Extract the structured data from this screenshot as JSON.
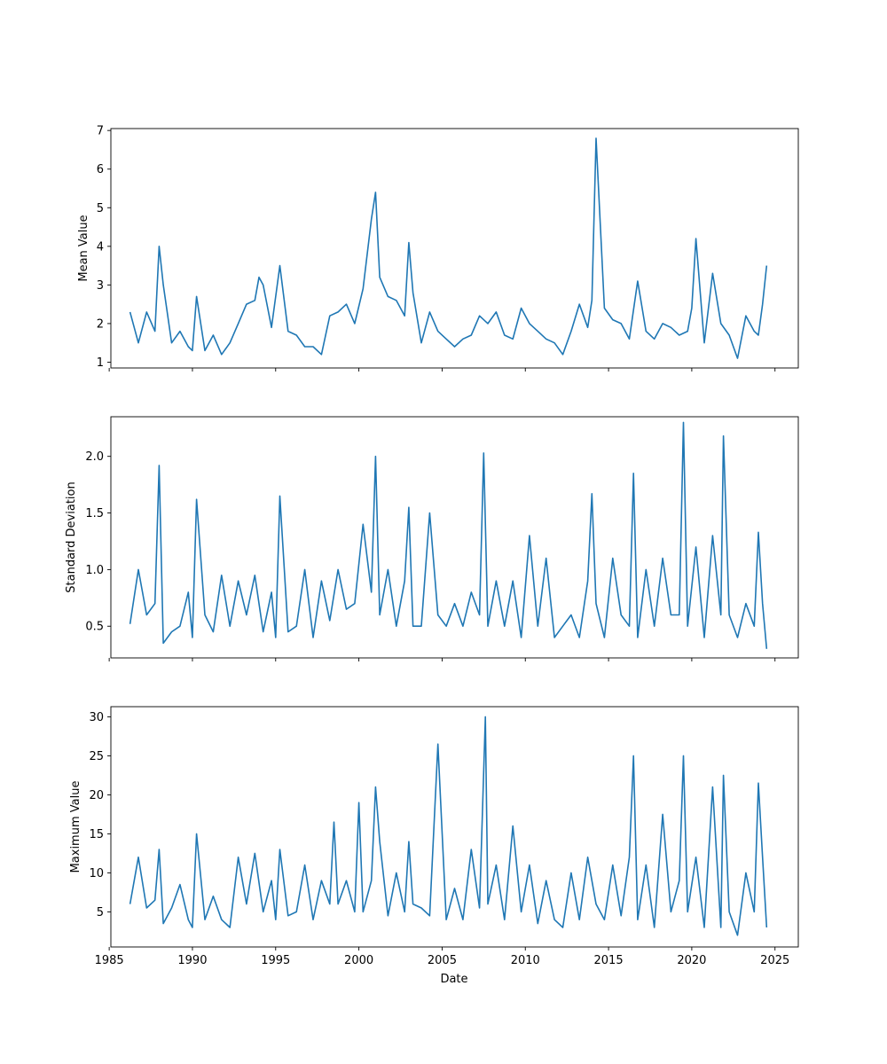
{
  "figure": {
    "xlabel": "Date",
    "xlim": [
      1985.1,
      2026.4
    ],
    "xticks": [
      1985,
      1990,
      1995,
      2000,
      2005,
      2010,
      2015,
      2020,
      2025
    ],
    "line_color": "#1f77b4"
  },
  "chart_data": [
    {
      "type": "line",
      "ylabel": "Mean Value",
      "ylim": [
        0.85,
        7.05
      ],
      "yticks": [
        1,
        2,
        3,
        4,
        5,
        6,
        7
      ],
      "x": [
        1986.25,
        1986.75,
        1987.25,
        1987.75,
        1988.0,
        1988.25,
        1988.75,
        1989.25,
        1989.75,
        1990.0,
        1990.25,
        1990.75,
        1991.25,
        1991.75,
        1992.25,
        1992.75,
        1993.25,
        1993.75,
        1994.0,
        1994.25,
        1994.75,
        1995.25,
        1995.75,
        1996.25,
        1996.75,
        1997.25,
        1997.75,
        1998.25,
        1998.75,
        1999.25,
        1999.75,
        2000.25,
        2000.75,
        2001.0,
        2001.25,
        2001.75,
        2002.25,
        2002.75,
        2003.0,
        2003.25,
        2003.75,
        2004.25,
        2004.75,
        2005.25,
        2005.75,
        2006.25,
        2006.75,
        2007.25,
        2007.75,
        2008.25,
        2008.75,
        2009.25,
        2009.75,
        2010.25,
        2010.75,
        2011.25,
        2011.75,
        2012.25,
        2012.75,
        2013.25,
        2013.75,
        2014.0,
        2014.25,
        2014.75,
        2015.25,
        2015.75,
        2016.25,
        2016.75,
        2017.25,
        2017.75,
        2018.25,
        2018.75,
        2019.25,
        2019.75,
        2020.0,
        2020.25,
        2020.75,
        2021.25,
        2021.75,
        2022.25,
        2022.75,
        2023.25,
        2023.75,
        2024.0,
        2024.25,
        2024.5
      ],
      "y": [
        2.3,
        1.5,
        2.3,
        1.8,
        4.0,
        3.0,
        1.5,
        1.8,
        1.4,
        1.3,
        2.7,
        1.3,
        1.7,
        1.2,
        1.5,
        2.0,
        2.5,
        2.6,
        3.2,
        3.0,
        1.9,
        3.5,
        1.8,
        1.7,
        1.4,
        1.4,
        1.2,
        2.2,
        2.3,
        2.5,
        2.0,
        2.9,
        4.7,
        5.4,
        3.2,
        2.7,
        2.6,
        2.2,
        4.1,
        2.8,
        1.5,
        2.3,
        1.8,
        1.6,
        1.4,
        1.6,
        1.7,
        2.2,
        2.0,
        2.3,
        1.7,
        1.6,
        2.4,
        2.0,
        1.8,
        1.6,
        1.5,
        1.2,
        1.8,
        2.5,
        1.9,
        2.6,
        6.8,
        2.4,
        2.1,
        2.0,
        1.6,
        3.1,
        1.8,
        1.6,
        2.0,
        1.9,
        1.7,
        1.8,
        2.4,
        4.2,
        1.5,
        3.3,
        2.0,
        1.7,
        1.1,
        2.2,
        1.8,
        1.7,
        2.5,
        3.5
      ]
    },
    {
      "type": "line",
      "ylabel": "Standard Deviation",
      "ylim": [
        0.22,
        2.35
      ],
      "yticks": [
        0.5,
        1.0,
        1.5,
        2.0
      ],
      "yticklabels": [
        "0.5",
        "1.0",
        "1.5",
        "2.0"
      ],
      "x": [
        1986.25,
        1986.75,
        1987.25,
        1987.75,
        1988.0,
        1988.25,
        1988.75,
        1989.25,
        1989.75,
        1990.0,
        1990.25,
        1990.75,
        1991.25,
        1991.75,
        1992.25,
        1992.75,
        1993.25,
        1993.75,
        1994.25,
        1994.75,
        1995.0,
        1995.25,
        1995.75,
        1996.25,
        1996.75,
        1997.25,
        1997.75,
        1998.25,
        1998.75,
        1999.25,
        1999.75,
        2000.25,
        2000.75,
        2001.0,
        2001.25,
        2001.75,
        2002.25,
        2002.75,
        2003.0,
        2003.25,
        2003.75,
        2004.25,
        2004.75,
        2005.25,
        2005.75,
        2006.25,
        2006.75,
        2007.25,
        2007.5,
        2007.75,
        2008.25,
        2008.75,
        2009.25,
        2009.75,
        2010.25,
        2010.75,
        2011.25,
        2011.75,
        2012.25,
        2012.75,
        2013.25,
        2013.75,
        2014.0,
        2014.25,
        2014.75,
        2015.25,
        2015.75,
        2016.25,
        2016.5,
        2016.75,
        2017.25,
        2017.75,
        2018.25,
        2018.75,
        2019.25,
        2019.5,
        2019.75,
        2020.25,
        2020.75,
        2021.25,
        2021.75,
        2021.9,
        2022.25,
        2022.75,
        2023.25,
        2023.75,
        2024.0,
        2024.25,
        2024.5
      ],
      "y": [
        0.52,
        1.0,
        0.6,
        0.7,
        1.92,
        0.35,
        0.45,
        0.5,
        0.8,
        0.4,
        1.62,
        0.6,
        0.45,
        0.95,
        0.5,
        0.9,
        0.6,
        0.95,
        0.45,
        0.8,
        0.4,
        1.65,
        0.45,
        0.5,
        1.0,
        0.4,
        0.9,
        0.55,
        1.0,
        0.65,
        0.7,
        1.4,
        0.8,
        2.0,
        0.6,
        1.0,
        0.5,
        0.9,
        1.55,
        0.5,
        0.5,
        1.5,
        0.6,
        0.5,
        0.7,
        0.5,
        0.8,
        0.6,
        2.03,
        0.5,
        0.9,
        0.5,
        0.9,
        0.4,
        1.3,
        0.5,
        1.1,
        0.4,
        0.5,
        0.6,
        0.4,
        0.9,
        1.67,
        0.7,
        0.4,
        1.1,
        0.6,
        0.5,
        1.85,
        0.4,
        1.0,
        0.5,
        1.1,
        0.6,
        0.6,
        2.3,
        0.5,
        1.2,
        0.4,
        1.3,
        0.6,
        2.18,
        0.6,
        0.4,
        0.7,
        0.5,
        1.33,
        0.7,
        0.3
      ]
    },
    {
      "type": "line",
      "ylabel": "Maximum Value",
      "ylim": [
        0.5,
        31.3
      ],
      "yticks": [
        5,
        10,
        15,
        20,
        25,
        30
      ],
      "x": [
        1986.25,
        1986.75,
        1987.25,
        1987.75,
        1988.0,
        1988.25,
        1988.75,
        1989.25,
        1989.75,
        1990.0,
        1990.25,
        1990.75,
        1991.25,
        1991.75,
        1992.25,
        1992.75,
        1993.25,
        1993.75,
        1994.25,
        1994.75,
        1995.0,
        1995.25,
        1995.75,
        1996.25,
        1996.75,
        1997.25,
        1997.75,
        1998.25,
        1998.5,
        1998.75,
        1999.25,
        1999.75,
        2000.0,
        2000.25,
        2000.75,
        2001.0,
        2001.25,
        2001.75,
        2002.25,
        2002.75,
        2003.0,
        2003.25,
        2003.75,
        2004.25,
        2004.75,
        2005.25,
        2005.75,
        2006.25,
        2006.75,
        2007.25,
        2007.6,
        2007.75,
        2008.25,
        2008.75,
        2009.25,
        2009.75,
        2010.25,
        2010.75,
        2011.25,
        2011.75,
        2012.25,
        2012.75,
        2013.25,
        2013.75,
        2014.25,
        2014.75,
        2015.25,
        2015.75,
        2016.25,
        2016.5,
        2016.75,
        2017.25,
        2017.75,
        2018.25,
        2018.75,
        2019.25,
        2019.5,
        2019.75,
        2020.25,
        2020.75,
        2021.25,
        2021.75,
        2021.9,
        2022.25,
        2022.75,
        2023.25,
        2023.75,
        2024.0,
        2024.25,
        2024.5
      ],
      "y": [
        6.0,
        12.0,
        5.5,
        6.5,
        13.0,
        3.5,
        5.5,
        8.5,
        4.0,
        3.0,
        15.0,
        4.0,
        7.0,
        4.0,
        3.0,
        12.0,
        6.0,
        12.5,
        5.0,
        9.0,
        4.0,
        13.0,
        4.5,
        5.0,
        11.0,
        4.0,
        9.0,
        6.0,
        16.5,
        6.0,
        9.0,
        5.0,
        19.0,
        5.0,
        9.0,
        21.0,
        14.0,
        4.5,
        10.0,
        5.0,
        14.0,
        6.0,
        5.5,
        4.5,
        26.5,
        4.0,
        8.0,
        4.0,
        13.0,
        5.5,
        30.0,
        6.0,
        11.0,
        4.0,
        16.0,
        5.0,
        11.0,
        3.5,
        9.0,
        4.0,
        3.0,
        10.0,
        4.0,
        12.0,
        6.0,
        4.0,
        11.0,
        4.5,
        12.0,
        25.0,
        4.0,
        11.0,
        3.0,
        17.5,
        5.0,
        9.0,
        25.0,
        5.0,
        12.0,
        3.0,
        21.0,
        3.0,
        22.5,
        5.0,
        2.0,
        10.0,
        5.0,
        21.5,
        12.0,
        3.0
      ]
    }
  ]
}
